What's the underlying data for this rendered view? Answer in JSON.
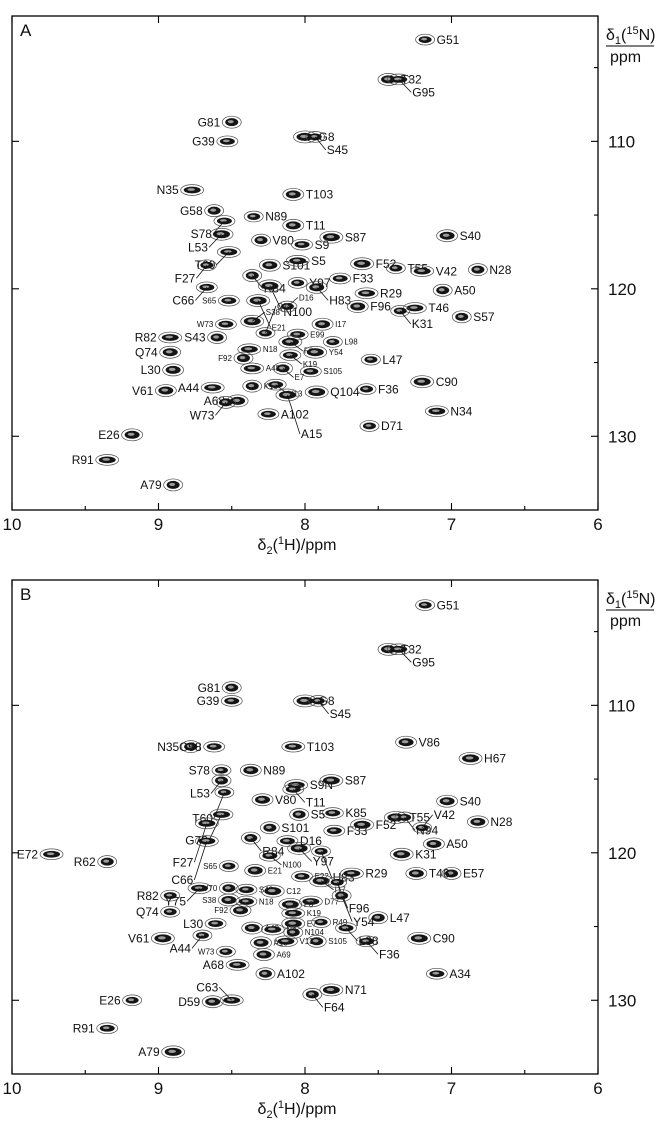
{
  "figure": {
    "colors": {
      "peak_fill": "#151515",
      "peak_contour": "#4a4a4a",
      "frame": "#000000"
    }
  },
  "chart_data": [
    {
      "type": "scatter",
      "panel_label": "A",
      "xlabel": "δ2(1H)/ppm",
      "ylabel": "δ1(15N)/ppm",
      "x_axis_reversed": true,
      "y_axis_reversed": true,
      "xlim": [
        10,
        6
      ],
      "ylim": [
        101.5,
        135
      ],
      "x_ticks": [
        "10",
        "9",
        "8",
        "7",
        "6"
      ],
      "y_ticks": [
        "110",
        "120",
        "130"
      ],
      "points": [
        {
          "label": "G51",
          "x": 7.18,
          "y": 103.1
        },
        {
          "label": "T32",
          "x": 7.43,
          "y": 105.8
        },
        {
          "label": "G95",
          "x": 7.36,
          "y": 105.8
        },
        {
          "label": "G81",
          "x": 8.5,
          "y": 108.7
        },
        {
          "label": "G39",
          "x": 8.53,
          "y": 110.0
        },
        {
          "label": "G8",
          "x": 8.0,
          "y": 109.7
        },
        {
          "label": "S45",
          "x": 7.93,
          "y": 109.7
        },
        {
          "label": "T103",
          "x": 8.08,
          "y": 113.6
        },
        {
          "label": "N35",
          "x": 8.77,
          "y": 113.3
        },
        {
          "label": "G58",
          "x": 8.62,
          "y": 114.7
        },
        {
          "label": "S78",
          "x": 8.55,
          "y": 115.4
        },
        {
          "label": "L53",
          "x": 8.57,
          "y": 116.3
        },
        {
          "label": "N89",
          "x": 8.35,
          "y": 115.1
        },
        {
          "label": "T11",
          "x": 8.08,
          "y": 115.7
        },
        {
          "label": "T60",
          "x": 8.52,
          "y": 117.5
        },
        {
          "label": "V80",
          "x": 8.3,
          "y": 116.7
        },
        {
          "label": "S9",
          "x": 8.02,
          "y": 117.0
        },
        {
          "label": "S87",
          "x": 7.82,
          "y": 116.5
        },
        {
          "label": "F27",
          "x": 8.67,
          "y": 118.4
        },
        {
          "label": "S101",
          "x": 8.24,
          "y": 118.4
        },
        {
          "label": "S5",
          "x": 8.05,
          "y": 118.1
        },
        {
          "label": "R84",
          "x": 8.36,
          "y": 119.1
        },
        {
          "label": "F33",
          "x": 7.76,
          "y": 119.3
        },
        {
          "label": "F52",
          "x": 7.61,
          "y": 118.3
        },
        {
          "label": "T55",
          "x": 7.38,
          "y": 118.6
        },
        {
          "label": "S40",
          "x": 7.03,
          "y": 116.4
        },
        {
          "label": "V42",
          "x": 7.2,
          "y": 118.8
        },
        {
          "label": "N28",
          "x": 6.82,
          "y": 118.7
        },
        {
          "label": "C66",
          "x": 8.67,
          "y": 119.9
        },
        {
          "label": "N100",
          "x": 8.24,
          "y": 119.8
        },
        {
          "label": "Y97",
          "x": 8.05,
          "y": 119.6
        },
        {
          "label": "H83",
          "x": 7.92,
          "y": 119.9
        },
        {
          "label": "R29",
          "x": 7.58,
          "y": 120.3
        },
        {
          "label": "A50",
          "x": 7.06,
          "y": 120.1
        },
        {
          "label": "S65",
          "x": 8.52,
          "y": 120.8
        },
        {
          "label": "E21",
          "x": 8.32,
          "y": 120.8
        },
        {
          "label": "D16",
          "x": 8.12,
          "y": 121.2
        },
        {
          "label": "F96",
          "x": 7.64,
          "y": 121.2
        },
        {
          "label": "T46",
          "x": 7.25,
          "y": 121.3
        },
        {
          "label": "S57",
          "x": 6.93,
          "y": 121.9
        },
        {
          "label": "W73",
          "x": 8.54,
          "y": 122.4
        },
        {
          "label": "S38",
          "x": 8.36,
          "y": 122.2
        },
        {
          "label": "K31",
          "x": 7.35,
          "y": 121.5
        },
        {
          "label": "I17",
          "x": 7.88,
          "y": 122.4
        },
        {
          "label": "R82",
          "x": 8.92,
          "y": 123.3
        },
        {
          "label": "S43",
          "x": 8.6,
          "y": 123.3
        },
        {
          "label": "E99",
          "x": 8.05,
          "y": 123.1
        },
        {
          "label": "F6",
          "x": 8.1,
          "y": 123.6
        },
        {
          "label": "L98",
          "x": 7.81,
          "y": 123.6
        },
        {
          "label": "Q74",
          "x": 8.92,
          "y": 124.3
        },
        {
          "label": "N18",
          "x": 8.38,
          "y": 124.1
        },
        {
          "label": "F92",
          "x": 8.42,
          "y": 124.7
        },
        {
          "label": "K19",
          "x": 8.1,
          "y": 124.5
        },
        {
          "label": "Y54",
          "x": 7.93,
          "y": 124.3
        },
        {
          "label": "L47",
          "x": 7.55,
          "y": 124.8
        },
        {
          "label": "L30",
          "x": 8.9,
          "y": 125.5
        },
        {
          "label": "A48",
          "x": 8.36,
          "y": 125.4
        },
        {
          "label": "E7",
          "x": 8.15,
          "y": 125.4
        },
        {
          "label": "S105",
          "x": 7.96,
          "y": 125.6
        },
        {
          "label": "C90",
          "x": 7.2,
          "y": 126.3
        },
        {
          "label": "C12",
          "x": 8.27,
          "y": 123.0
        },
        {
          "label": "V61",
          "x": 8.95,
          "y": 126.9
        },
        {
          "label": "A44",
          "x": 8.63,
          "y": 126.7
        },
        {
          "label": "K10",
          "x": 8.36,
          "y": 126.6
        },
        {
          "label": "V13",
          "x": 8.2,
          "y": 126.5
        },
        {
          "label": "Q104",
          "x": 7.92,
          "y": 127.0
        },
        {
          "label": "F36",
          "x": 7.58,
          "y": 126.8
        },
        {
          "label": "A68",
          "x": 8.46,
          "y": 127.6
        },
        {
          "label": "N34",
          "x": 7.1,
          "y": 128.3
        },
        {
          "label": "W73",
          "x": 8.54,
          "y": 127.7
        },
        {
          "label": "A102",
          "x": 8.25,
          "y": 128.5
        },
        {
          "label": "A15",
          "x": 8.12,
          "y": 127.2
        },
        {
          "label": "D71",
          "x": 7.56,
          "y": 129.3
        },
        {
          "label": "E26",
          "x": 9.18,
          "y": 129.9
        },
        {
          "label": "R91",
          "x": 9.35,
          "y": 131.6
        },
        {
          "label": "A79",
          "x": 8.9,
          "y": 133.3
        }
      ]
    },
    {
      "type": "scatter",
      "panel_label": "B",
      "xlabel": "δ2(1H)/ppm",
      "ylabel": "δ1(15N)/ppm",
      "x_axis_reversed": true,
      "y_axis_reversed": true,
      "xlim": [
        10,
        6
      ],
      "ylim": [
        101.5,
        135
      ],
      "x_ticks": [
        "10",
        "9",
        "8",
        "7",
        "6"
      ],
      "y_ticks": [
        "110",
        "120",
        "130"
      ],
      "points": [
        {
          "label": "G51",
          "x": 7.18,
          "y": 103.2
        },
        {
          "label": "T32",
          "x": 7.43,
          "y": 106.2
        },
        {
          "label": "G95",
          "x": 7.36,
          "y": 106.2
        },
        {
          "label": "G81",
          "x": 8.5,
          "y": 108.8
        },
        {
          "label": "G39",
          "x": 8.5,
          "y": 109.7
        },
        {
          "label": "G8",
          "x": 8.0,
          "y": 109.7
        },
        {
          "label": "S45",
          "x": 7.91,
          "y": 109.7
        },
        {
          "label": "V86",
          "x": 7.31,
          "y": 112.5
        },
        {
          "label": "T103",
          "x": 8.08,
          "y": 112.8
        },
        {
          "label": "N35",
          "x": 8.78,
          "y": 112.8
        },
        {
          "label": "G58",
          "x": 8.62,
          "y": 112.8
        },
        {
          "label": "H67",
          "x": 6.87,
          "y": 113.6
        },
        {
          "label": "S78",
          "x": 8.57,
          "y": 114.4
        },
        {
          "label": "N89",
          "x": 8.37,
          "y": 114.4
        },
        {
          "label": "S9N",
          "x": 8.06,
          "y": 115.4
        },
        {
          "label": "L53",
          "x": 8.57,
          "y": 115.1
        },
        {
          "label": "T11",
          "x": 8.08,
          "y": 115.7
        },
        {
          "label": "S87",
          "x": 7.82,
          "y": 115.1
        },
        {
          "label": "T60",
          "x": 8.55,
          "y": 115.9
        },
        {
          "label": "V80",
          "x": 8.29,
          "y": 116.4
        },
        {
          "label": "G76",
          "x": 8.57,
          "y": 117.4
        },
        {
          "label": "S5",
          "x": 8.04,
          "y": 117.4
        },
        {
          "label": "K85",
          "x": 7.81,
          "y": 117.3
        },
        {
          "label": "T55",
          "x": 7.38,
          "y": 117.6
        },
        {
          "label": "N94",
          "x": 7.32,
          "y": 117.6
        },
        {
          "label": "S40",
          "x": 7.03,
          "y": 116.5
        },
        {
          "label": "F27",
          "x": 8.67,
          "y": 118.0
        },
        {
          "label": "S101",
          "x": 8.24,
          "y": 118.3
        },
        {
          "label": "F33",
          "x": 7.8,
          "y": 118.5
        },
        {
          "label": "F52",
          "x": 7.61,
          "y": 118.1
        },
        {
          "label": "V42",
          "x": 7.2,
          "y": 118.3
        },
        {
          "label": "N28",
          "x": 6.82,
          "y": 117.9
        },
        {
          "label": "C66",
          "x": 8.67,
          "y": 119.2
        },
        {
          "label": "R84",
          "x": 8.37,
          "y": 119.0
        },
        {
          "label": "D16",
          "x": 8.12,
          "y": 119.2
        },
        {
          "label": "Y97",
          "x": 8.04,
          "y": 119.7
        },
        {
          "label": "H83",
          "x": 7.89,
          "y": 119.9
        },
        {
          "label": "A50",
          "x": 7.12,
          "y": 119.4
        },
        {
          "label": "E72",
          "x": 9.73,
          "y": 120.1
        },
        {
          "label": "R62",
          "x": 9.35,
          "y": 120.6
        },
        {
          "label": "N100",
          "x": 8.24,
          "y": 120.2
        },
        {
          "label": "K31",
          "x": 7.34,
          "y": 120.1
        },
        {
          "label": "S65",
          "x": 8.52,
          "y": 120.9
        },
        {
          "label": "E21",
          "x": 8.34,
          "y": 121.2
        },
        {
          "label": "R29",
          "x": 7.68,
          "y": 121.4
        },
        {
          "label": "E57",
          "x": 7.0,
          "y": 121.4
        },
        {
          "label": "E22",
          "x": 8.02,
          "y": 121.6
        },
        {
          "label": "I17",
          "x": 7.89,
          "y": 121.9
        },
        {
          "label": "F96",
          "x": 7.78,
          "y": 122.0
        },
        {
          "label": "T46",
          "x": 7.24,
          "y": 121.4
        },
        {
          "label": "Y75",
          "x": 8.72,
          "y": 122.4
        },
        {
          "label": "V70",
          "x": 8.52,
          "y": 122.4
        },
        {
          "label": "S43",
          "x": 8.4,
          "y": 122.5
        },
        {
          "label": "C12",
          "x": 8.22,
          "y": 122.6
        },
        {
          "label": "R82",
          "x": 8.92,
          "y": 122.9
        },
        {
          "label": "S38",
          "x": 8.52,
          "y": 123.2
        },
        {
          "label": "D77",
          "x": 7.96,
          "y": 123.3
        },
        {
          "label": "Y54",
          "x": 7.75,
          "y": 122.9
        },
        {
          "label": "N18",
          "x": 8.4,
          "y": 123.3
        },
        {
          "label": "F6",
          "x": 8.1,
          "y": 123.5
        },
        {
          "label": "Q74",
          "x": 8.92,
          "y": 124.0
        },
        {
          "label": "F92",
          "x": 8.44,
          "y": 123.9
        },
        {
          "label": "K19",
          "x": 8.08,
          "y": 124.1
        },
        {
          "label": "L47",
          "x": 7.5,
          "y": 124.4
        },
        {
          "label": "L30",
          "x": 8.61,
          "y": 124.8
        },
        {
          "label": "E7",
          "x": 8.08,
          "y": 124.8
        },
        {
          "label": "R49",
          "x": 7.89,
          "y": 124.7
        },
        {
          "label": "A48",
          "x": 8.36,
          "y": 125.1
        },
        {
          "label": "N4",
          "x": 8.22,
          "y": 125.2
        },
        {
          "label": "N104",
          "x": 8.08,
          "y": 125.4
        },
        {
          "label": "L98",
          "x": 7.72,
          "y": 125.1
        },
        {
          "label": "V61",
          "x": 8.97,
          "y": 125.8
        },
        {
          "label": "A44",
          "x": 8.7,
          "y": 125.6
        },
        {
          "label": "A15",
          "x": 8.3,
          "y": 126.1
        },
        {
          "label": "V13",
          "x": 8.13,
          "y": 126.0
        },
        {
          "label": "S105",
          "x": 7.92,
          "y": 126.0
        },
        {
          "label": "F36",
          "x": 7.58,
          "y": 126.0
        },
        {
          "label": "C90",
          "x": 7.22,
          "y": 125.8
        },
        {
          "label": "W73",
          "x": 8.54,
          "y": 126.7
        },
        {
          "label": "A69",
          "x": 8.28,
          "y": 126.9
        },
        {
          "label": "A68",
          "x": 8.46,
          "y": 127.6
        },
        {
          "label": "A102",
          "x": 8.27,
          "y": 128.2
        },
        {
          "label": "A34",
          "x": 7.1,
          "y": 128.2
        },
        {
          "label": "N71",
          "x": 7.82,
          "y": 129.3
        },
        {
          "label": "E26",
          "x": 9.18,
          "y": 130.0
        },
        {
          "label": "D59",
          "x": 8.63,
          "y": 130.1
        },
        {
          "label": "C63",
          "x": 8.5,
          "y": 130.0
        },
        {
          "label": "F64",
          "x": 7.95,
          "y": 129.6
        },
        {
          "label": "R91",
          "x": 9.35,
          "y": 131.9
        },
        {
          "label": "A79",
          "x": 8.9,
          "y": 133.5
        }
      ]
    }
  ]
}
